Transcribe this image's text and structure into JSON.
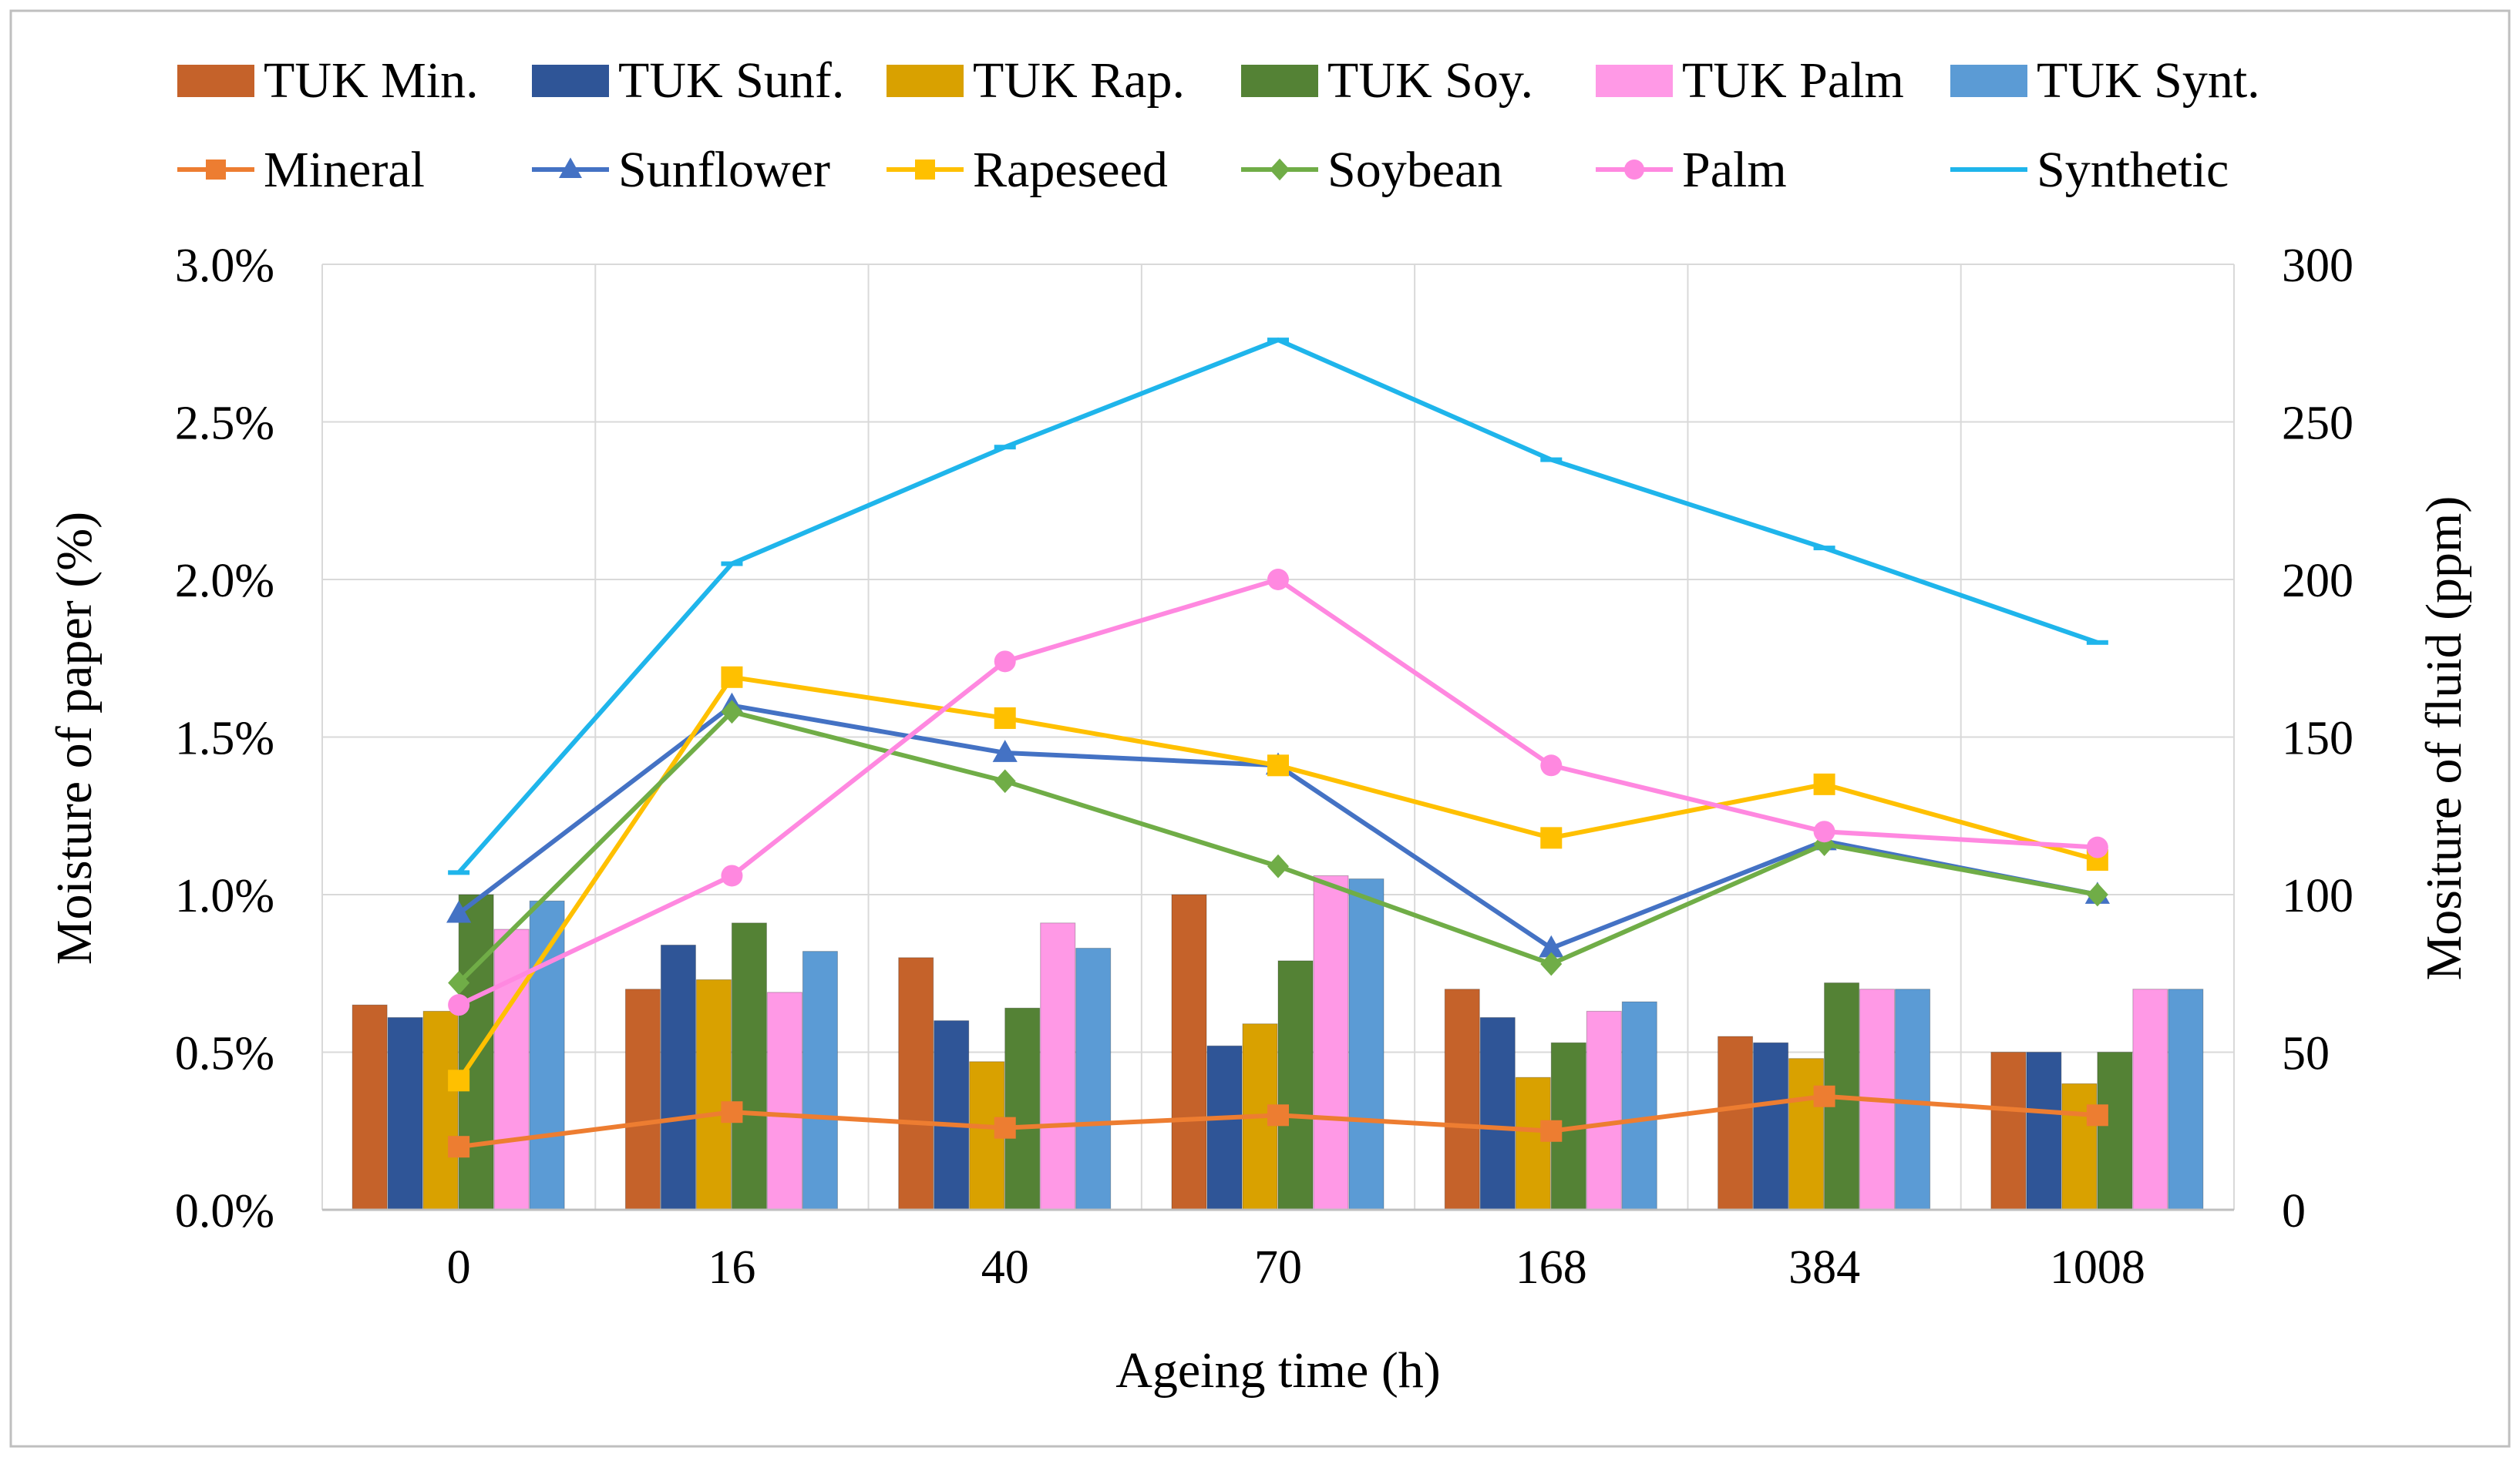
{
  "chart_data": {
    "type": "bar+line",
    "categories": [
      "0",
      "16",
      "40",
      "70",
      "168",
      "384",
      "1008"
    ],
    "xlabel": "Ageing time (h)",
    "ylabel_left": "Moisture of paper (%)",
    "ylabel_right": "Mositure of fluid (ppm)",
    "y_left_range": [
      0,
      3.0
    ],
    "y_left_ticks": [
      "0.0%",
      "0.5%",
      "1.0%",
      "1.5%",
      "2.0%",
      "2.5%",
      "3.0%"
    ],
    "y_right_range": [
      0,
      300
    ],
    "y_right_ticks": [
      "0",
      "50",
      "100",
      "150",
      "200",
      "250",
      "300"
    ],
    "grid": true,
    "legend_position": "top",
    "bar_series": [
      {
        "name": "TUK Min.",
        "color": "#C5622A",
        "values": [
          0.65,
          0.7,
          0.8,
          1.0,
          0.7,
          0.55,
          0.5
        ]
      },
      {
        "name": "TUK Sunf.",
        "color": "#2F5597",
        "values": [
          0.61,
          0.84,
          0.6,
          0.52,
          0.61,
          0.53,
          0.5
        ]
      },
      {
        "name": "TUK Rap.",
        "color": "#D9A100",
        "values": [
          0.63,
          0.73,
          0.47,
          0.59,
          0.42,
          0.48,
          0.4
        ]
      },
      {
        "name": "TUK Soy.",
        "color": "#548235",
        "values": [
          1.0,
          0.91,
          0.64,
          0.79,
          0.53,
          0.72,
          0.5
        ]
      },
      {
        "name": "TUK Palm",
        "color": "#FF99E6",
        "values": [
          0.89,
          0.69,
          0.91,
          1.06,
          0.63,
          0.7,
          0.7
        ]
      },
      {
        "name": "TUK Synt.",
        "color": "#5B9BD5",
        "values": [
          0.98,
          0.82,
          0.83,
          1.05,
          0.66,
          0.7,
          0.7
        ]
      }
    ],
    "line_series": [
      {
        "name": "Mineral",
        "color": "#ED7D31",
        "marker": "square",
        "values": [
          20,
          31,
          26,
          30,
          25,
          36,
          30
        ]
      },
      {
        "name": "Sunflower",
        "color": "#4472C4",
        "marker": "triangle",
        "values": [
          94,
          160,
          145,
          141,
          83,
          117,
          100
        ]
      },
      {
        "name": "Rapeseed",
        "color": "#FFC000",
        "marker": "square",
        "values": [
          41,
          169,
          156,
          141,
          118,
          135,
          111
        ]
      },
      {
        "name": "Soybean",
        "color": "#70AD47",
        "marker": "diamond",
        "values": [
          72,
          158,
          136,
          109,
          78,
          116,
          100
        ]
      },
      {
        "name": "Palm",
        "color": "#FF88E0",
        "marker": "circle",
        "values": [
          65,
          106,
          174,
          200,
          141,
          120,
          115
        ]
      },
      {
        "name": "Synthetic",
        "color": "#1FB5EB",
        "marker": "dash",
        "values": [
          107,
          205,
          242,
          276,
          238,
          210,
          180
        ]
      }
    ]
  }
}
